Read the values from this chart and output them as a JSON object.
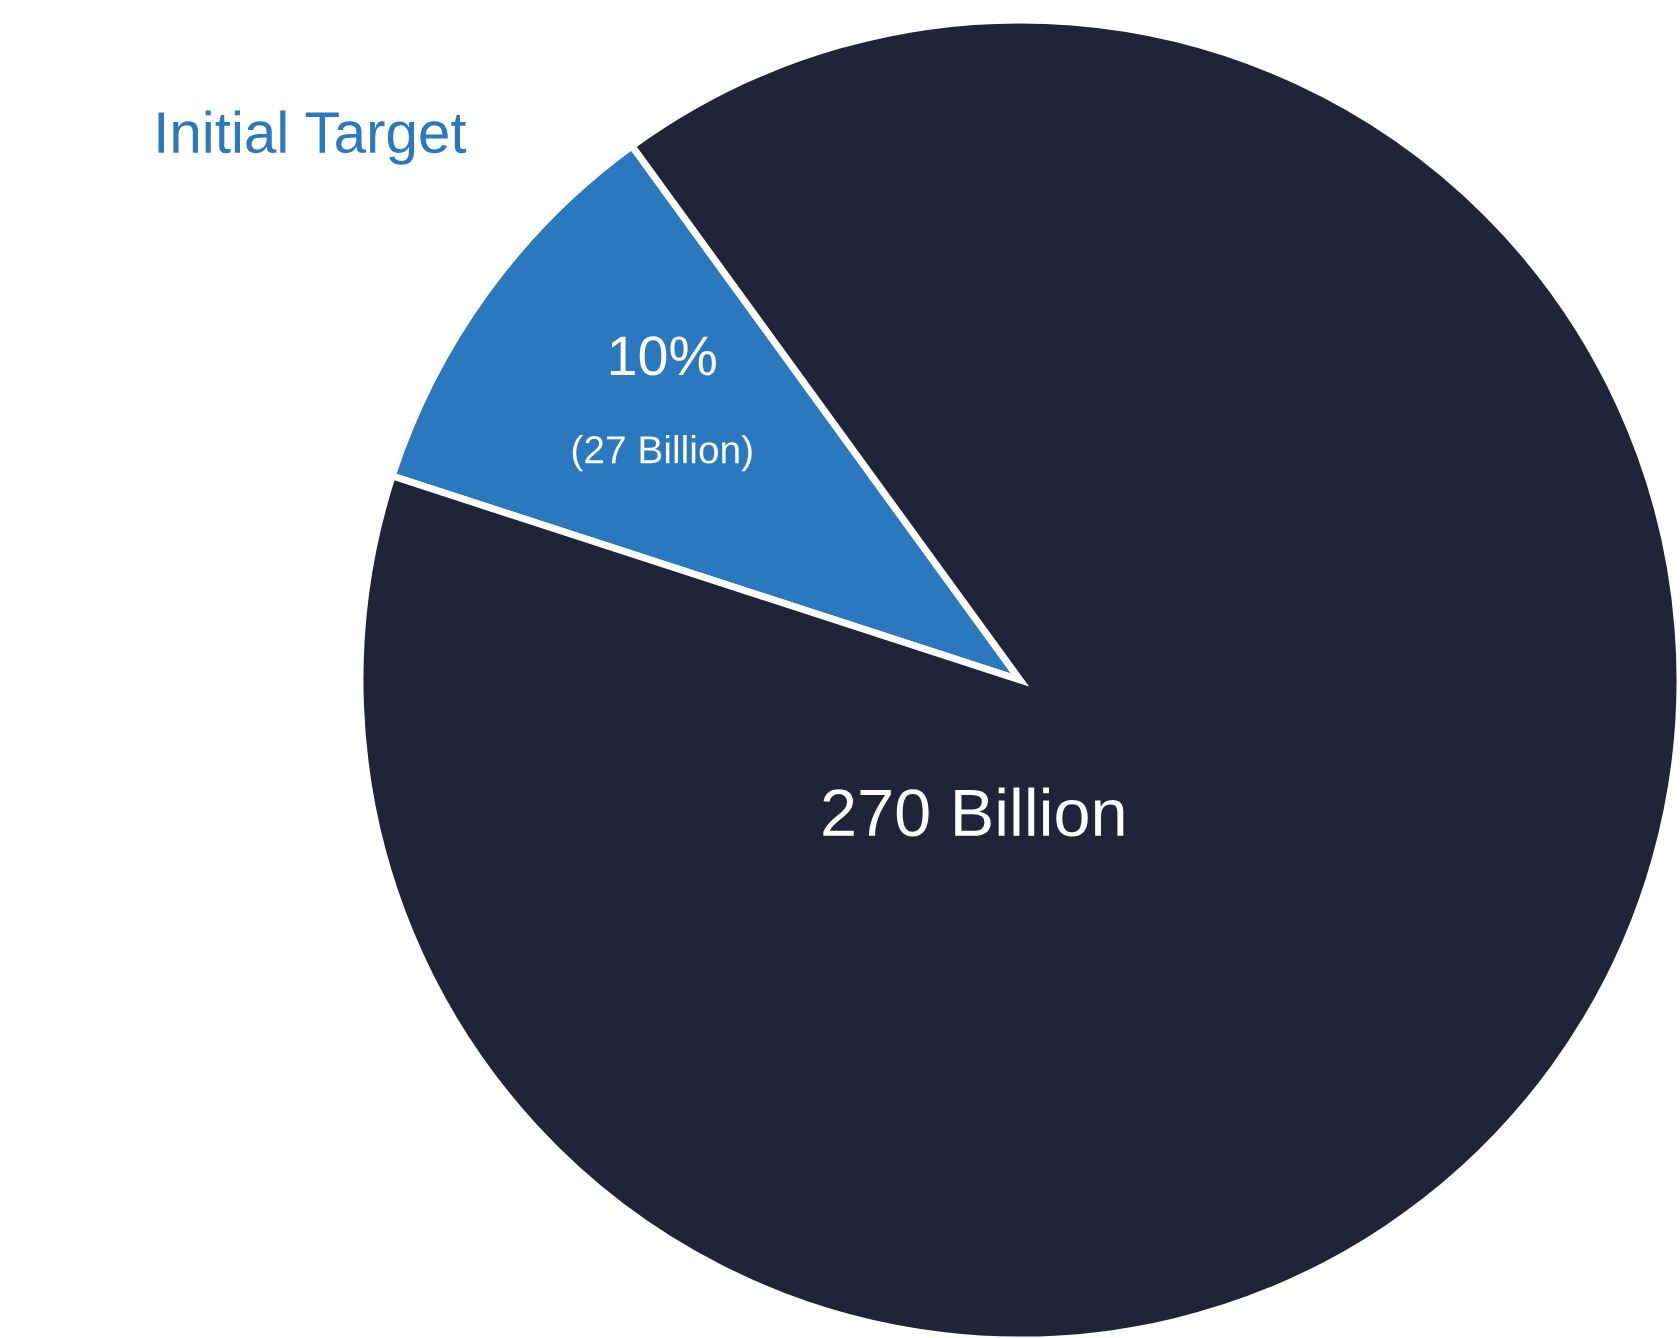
{
  "chart_data": {
    "type": "pie",
    "categories": [
      "Initial Target",
      null
    ],
    "values": [
      10,
      90
    ],
    "colors": [
      "#2a78bd",
      "#1f2438"
    ],
    "value_labels": [
      "10%\n(27 Billion)",
      null
    ],
    "annotations": [
      "270 Billion"
    ]
  }
}
